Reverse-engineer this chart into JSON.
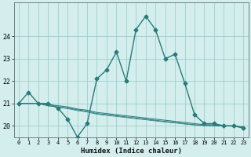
{
  "xlabel": "Humidex (Indice chaleur)",
  "x": [
    0,
    1,
    2,
    3,
    4,
    5,
    6,
    7,
    8,
    9,
    10,
    11,
    12,
    13,
    14,
    15,
    16,
    17,
    18,
    19,
    20,
    21,
    22,
    23
  ],
  "line_main": [
    21.0,
    21.5,
    21.0,
    21.0,
    20.8,
    20.3,
    19.5,
    20.1,
    22.1,
    22.5,
    23.3,
    22.0,
    24.3,
    24.9,
    24.3,
    23.0,
    23.2,
    21.9,
    20.5,
    20.1,
    20.1,
    20.0,
    20.0,
    19.9
  ],
  "line_flat1": [
    21.0,
    21.0,
    21.0,
    20.95,
    20.9,
    20.85,
    20.75,
    20.7,
    20.6,
    20.55,
    20.5,
    20.45,
    20.4,
    20.35,
    20.3,
    20.25,
    20.2,
    20.15,
    20.1,
    20.05,
    20.05,
    20.0,
    20.0,
    19.95
  ],
  "line_flat2": [
    21.0,
    21.0,
    21.0,
    20.9,
    20.85,
    20.8,
    20.72,
    20.65,
    20.55,
    20.5,
    20.45,
    20.4,
    20.35,
    20.3,
    20.25,
    20.2,
    20.15,
    20.1,
    20.05,
    20.02,
    20.01,
    20.0,
    20.0,
    19.93
  ],
  "line_flat3": [
    21.0,
    21.0,
    21.0,
    20.9,
    20.83,
    20.77,
    20.68,
    20.62,
    20.52,
    20.47,
    20.42,
    20.37,
    20.32,
    20.27,
    20.22,
    20.17,
    20.13,
    20.08,
    20.04,
    20.01,
    20.0,
    19.99,
    19.98,
    19.92
  ],
  "line_color": "#2a7a7a",
  "bg_color": "#d4eeed",
  "grid_color": "#9ecece",
  "ylim": [
    19.5,
    25.5
  ],
  "yticks": [
    20,
    21,
    22,
    23,
    24
  ],
  "xtick_labels": [
    "0",
    "1",
    "2",
    "3",
    "4",
    "5",
    "6",
    "7",
    "8",
    "9",
    "10",
    "11",
    "12",
    "13",
    "14",
    "15",
    "16",
    "17",
    "18",
    "19",
    "20",
    "21",
    "22",
    "23"
  ],
  "marker": "D",
  "markersize": 2.5,
  "linewidth": 1.0
}
